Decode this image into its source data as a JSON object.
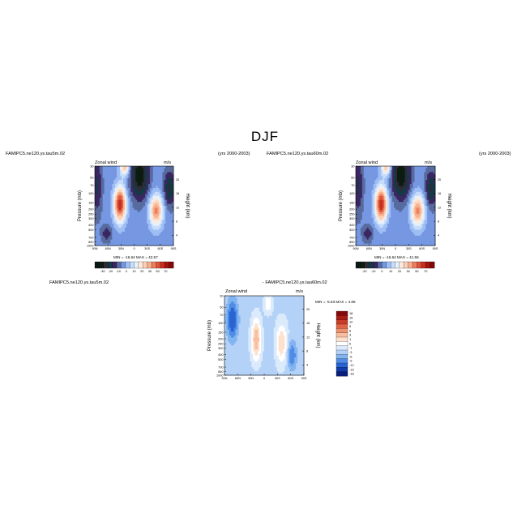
{
  "title": "DJF",
  "panels": [
    {
      "id": "left",
      "case_label": "FAMIPC5.ne120.ys.tau5m.02",
      "years_label": "(yrs 2000-2003)",
      "left_string": "Zonal wind",
      "right_string": "m/s",
      "ylabel": "Pressure (mb)",
      "y2label": "Height (km)",
      "stats": "MIN = -16.64  MAX = 42.57",
      "xticks": [
        "90N",
        "60N",
        "30N",
        "0",
        "30S",
        "60S",
        "90S"
      ],
      "yticks": [
        "30",
        "50",
        "70",
        "100",
        "150",
        "200",
        "250",
        "300",
        "400",
        "500",
        "700",
        "850",
        "1000"
      ],
      "y2ticks": [
        "20",
        "16",
        "12",
        "8",
        "4"
      ],
      "colorbar_ticks": [
        "-30",
        "-20",
        "-10",
        "0",
        "10",
        "20",
        "30",
        "50",
        "70"
      ]
    },
    {
      "id": "right",
      "case_label": "FAMIPC5.ne120.ys.tau60m.02",
      "years_label": "(yrs 2000-2003)",
      "left_string": "Zonal wind",
      "right_string": "m/s",
      "ylabel": "Pressure (mb)",
      "y2label": "Height (km)",
      "stats": "MIN = -16.64  MAX = 41.56",
      "xticks": [
        "90N",
        "60N",
        "30N",
        "0",
        "30S",
        "60S",
        "90S"
      ],
      "yticks": [
        "30",
        "50",
        "70",
        "100",
        "150",
        "200",
        "250",
        "300",
        "400",
        "500",
        "700",
        "850",
        "1000"
      ],
      "y2ticks": [
        "20",
        "16",
        "12",
        "8",
        "4"
      ],
      "colorbar_ticks": [
        "-20",
        "-10",
        "0",
        "10",
        "20",
        "30",
        "50",
        "70"
      ]
    },
    {
      "id": "diff",
      "case_label": "FAMIPC5.ne120.ys.tau5m.02",
      "diff_label": "- FAMIPC5.ne120.ys.tau60m.02",
      "left_string": "Zonal wind",
      "right_string": "m/s",
      "ylabel": "Pressure (mb)",
      "y2label": "Height (km)",
      "stats": "MIN = -5.83  MAX = 4.86",
      "xticks": [
        "90N",
        "60N",
        "30N",
        "0",
        "30S",
        "60S",
        "90S"
      ],
      "yticks": [
        "30",
        "50",
        "70",
        "100",
        "150",
        "200",
        "250",
        "300",
        "400",
        "500",
        "700",
        "850",
        "1000"
      ],
      "y2ticks": [
        "20",
        "16",
        "12",
        "8",
        "4"
      ],
      "colorbar_ticks": [
        "18",
        "15",
        "12",
        "9",
        "6",
        "3",
        "1",
        "0",
        "-1",
        "-3",
        "-6",
        "-9",
        "-12",
        "-15",
        "-18"
      ]
    }
  ],
  "colors": {
    "blue_dark": "#0b2ea8",
    "blue_mid": "#3f78e8",
    "blue_light": "#c6dbf7",
    "red_dark": "#a51f10",
    "red_mid": "#e45c2f",
    "red_light": "#f8d2b8"
  },
  "chart_data": [
    {
      "type": "heatmap",
      "panel": "left",
      "title": "",
      "xlabel": "",
      "ylabel": "Pressure (mb)",
      "xlim": [
        "90N",
        "90S"
      ],
      "ylim": [
        1000,
        30
      ],
      "features": [
        {
          "kind": "jet",
          "lat": "30N",
          "pressure_mb": 200,
          "value": 42.57
        },
        {
          "kind": "jet",
          "lat": "45S",
          "pressure_mb": 250,
          "value": 30
        },
        {
          "kind": "easterly",
          "lat": "10S",
          "pressure_mb": 50,
          "value": -16.64
        }
      ],
      "min": -16.64,
      "max": 42.57
    },
    {
      "type": "heatmap",
      "panel": "right",
      "title": "",
      "xlabel": "",
      "ylabel": "Pressure (mb)",
      "xlim": [
        "90N",
        "90S"
      ],
      "ylim": [
        1000,
        30
      ],
      "features": [
        {
          "kind": "jet",
          "lat": "30N",
          "pressure_mb": 200,
          "value": 41.56
        },
        {
          "kind": "jet",
          "lat": "45S",
          "pressure_mb": 250,
          "value": 30
        },
        {
          "kind": "easterly",
          "lat": "10S",
          "pressure_mb": 50,
          "value": -16.64
        }
      ],
      "min": -16.64,
      "max": 41.56
    },
    {
      "type": "heatmap",
      "panel": "diff",
      "title": "",
      "xlabel": "",
      "ylabel": "Pressure (mb)",
      "xlim": [
        "90N",
        "90S"
      ],
      "ylim": [
        1000,
        30
      ],
      "min": -5.83,
      "max": 4.86
    }
  ]
}
